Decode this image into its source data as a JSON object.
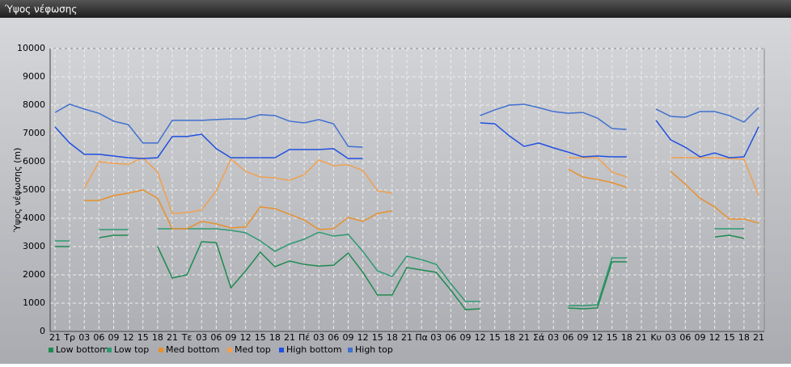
{
  "chart_data": {
    "type": "line",
    "title": "Ύψος νέφωσης",
    "y_label": "Ύψος νέφωσης (m)",
    "categories": [
      "21",
      "Τρ",
      "03",
      "06",
      "09",
      "12",
      "15",
      "18",
      "21",
      "Τε",
      "03",
      "06",
      "09",
      "12",
      "15",
      "18",
      "21",
      "Πέ",
      "03",
      "06",
      "09",
      "12",
      "15",
      "18",
      "21",
      "Πα",
      "03",
      "06",
      "09",
      "12",
      "15",
      "18",
      "21",
      "Σά",
      "03",
      "06",
      "09",
      "12",
      "15",
      "18",
      "21",
      "Κυ",
      "03",
      "06",
      "09",
      "12",
      "15",
      "18",
      "21"
    ],
    "ylim": [
      0,
      10000
    ],
    "yticks": [
      0,
      1000,
      2000,
      3000,
      4000,
      5000,
      6000,
      7000,
      8000,
      9000,
      10000
    ],
    "grid": true,
    "series": [
      {
        "name": "Low bottom",
        "color": "#1f8a50",
        "values": [
          3000,
          3000,
          null,
          3310,
          3400,
          3400,
          null,
          3000,
          1890,
          2000,
          3170,
          3140,
          1540,
          2140,
          2800,
          2290,
          2490,
          2370,
          2310,
          2340,
          2770,
          2090,
          1290,
          1290,
          2260,
          2170,
          2090,
          1460,
          770,
          800,
          null,
          null,
          null,
          null,
          null,
          830,
          800,
          830,
          2460,
          2460,
          null,
          null,
          null,
          null,
          null,
          3340,
          3400,
          3290,
          null
        ]
      },
      {
        "name": "Low top",
        "color": "#2f9a70",
        "values": [
          3200,
          3200,
          null,
          3600,
          3600,
          3600,
          null,
          3630,
          3630,
          3630,
          3630,
          3630,
          3570,
          3490,
          3200,
          2830,
          3090,
          3260,
          3510,
          3370,
          3430,
          2830,
          2140,
          1940,
          2660,
          2540,
          2370,
          1690,
          1060,
          1060,
          null,
          null,
          null,
          null,
          null,
          910,
          910,
          940,
          2600,
          2600,
          null,
          null,
          null,
          null,
          null,
          3630,
          3630,
          3630,
          null
        ]
      },
      {
        "name": "Med bottom",
        "color": "#e8902a",
        "values": [
          null,
          null,
          4630,
          4630,
          4800,
          4890,
          5000,
          4710,
          3630,
          3630,
          3890,
          3800,
          3660,
          3690,
          4400,
          4340,
          4140,
          3940,
          3600,
          3630,
          4030,
          3890,
          4170,
          4260,
          null,
          null,
          null,
          null,
          null,
          null,
          null,
          null,
          null,
          null,
          null,
          5740,
          5460,
          5370,
          5260,
          5090,
          null,
          null,
          5660,
          5200,
          4710,
          4400,
          3970,
          3970,
          3830
        ]
      },
      {
        "name": "Med top",
        "color": "#f0a050",
        "values": [
          null,
          null,
          5060,
          6000,
          5940,
          5910,
          6140,
          5630,
          4170,
          4200,
          4290,
          4970,
          6090,
          5660,
          5460,
          5430,
          5340,
          5540,
          6060,
          5860,
          5890,
          5690,
          4970,
          4890,
          null,
          null,
          null,
          null,
          null,
          null,
          null,
          null,
          null,
          null,
          null,
          6140,
          6140,
          6140,
          5630,
          5460,
          null,
          null,
          6140,
          6140,
          6140,
          6140,
          6110,
          6090,
          4800
        ]
      },
      {
        "name": "High bottom",
        "color": "#2050e0",
        "values": [
          7230,
          6660,
          6260,
          6260,
          6200,
          6140,
          6110,
          6140,
          6890,
          6890,
          6970,
          6460,
          6140,
          6140,
          6140,
          6140,
          6430,
          6430,
          6430,
          6460,
          6110,
          6110,
          null,
          null,
          null,
          null,
          null,
          null,
          null,
          7370,
          7340,
          6910,
          6540,
          6660,
          6490,
          6340,
          6170,
          6200,
          6170,
          6170,
          null,
          7460,
          6770,
          6510,
          6170,
          6310,
          6140,
          6170,
          7230
        ]
      },
      {
        "name": "High top",
        "color": "#4070d0",
        "values": [
          7740,
          8030,
          7860,
          7710,
          7430,
          7310,
          6660,
          6660,
          7460,
          7460,
          7460,
          7490,
          7510,
          7510,
          7660,
          7630,
          7430,
          7370,
          7490,
          7340,
          6540,
          6510,
          null,
          null,
          null,
          null,
          null,
          null,
          null,
          7630,
          7830,
          8000,
          8030,
          7910,
          7770,
          7710,
          7740,
          7540,
          7170,
          7140,
          null,
          7860,
          7600,
          7570,
          7770,
          7770,
          7630,
          7400,
          7910
        ]
      }
    ]
  }
}
